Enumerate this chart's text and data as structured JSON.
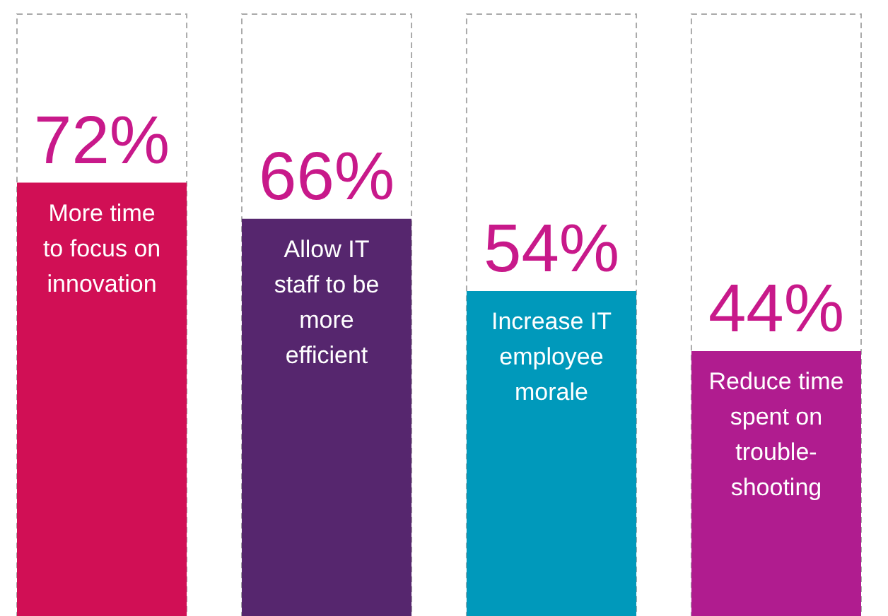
{
  "chart_data": {
    "type": "bar",
    "categories": [
      "More time to focus on innovation",
      "Allow IT staff to be more efficient",
      "Increase IT employee morale",
      "Reduce time spent on trouble-shooting"
    ],
    "values": [
      72,
      66,
      54,
      44
    ],
    "colors": [
      "#d10f55",
      "#56266e",
      "#0099bb",
      "#b01c8f"
    ],
    "value_labels": [
      "72%",
      "66%",
      "54%",
      "44%"
    ],
    "ylim": [
      0,
      100
    ]
  }
}
